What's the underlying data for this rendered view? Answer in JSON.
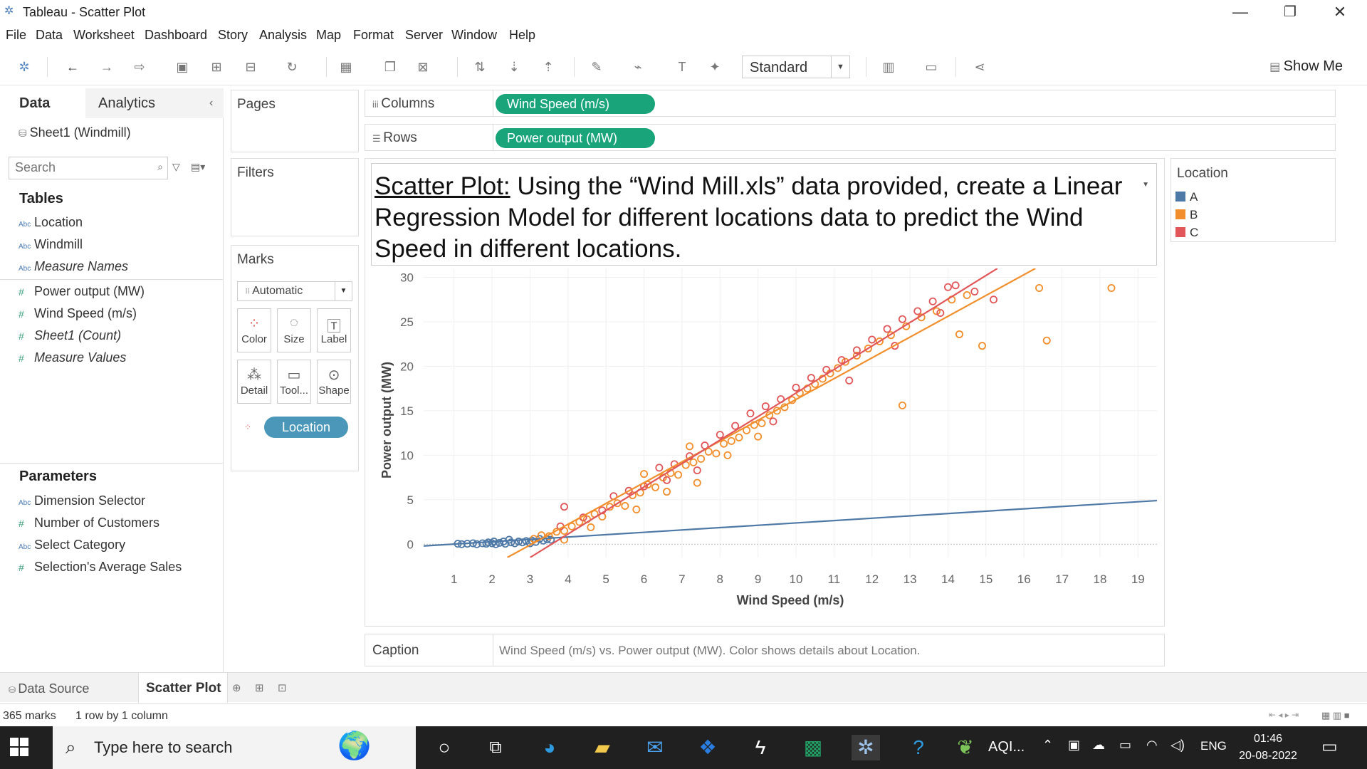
{
  "window": {
    "title": "Tableau - Scatter Plot",
    "minimize": "—",
    "restore": "❐",
    "close": "✕"
  },
  "menu": [
    "File",
    "Data",
    "Worksheet",
    "Dashboard",
    "Story",
    "Analysis",
    "Map",
    "Format",
    "Server",
    "Window",
    "Help"
  ],
  "toolbar": {
    "fit": "Standard",
    "show_me": "Show Me"
  },
  "data_pane": {
    "tab_data": "Data",
    "tab_analytics": "Analytics",
    "datasource": "Sheet1 (Windmill)",
    "search_placeholder": "Search",
    "tables_title": "Tables",
    "dimensions": [
      "Location",
      "Windmill",
      "Measure Names"
    ],
    "measures": [
      "Power output (MW)",
      "Wind Speed (m/s)",
      "Sheet1 (Count)",
      "Measure Values"
    ],
    "parameters_title": "Parameters",
    "parameters": [
      "Dimension Selector",
      "Number of Customers",
      "Select Category",
      "Selection's Average Sales"
    ]
  },
  "cards": {
    "pages": "Pages",
    "filters": "Filters",
    "marks": "Marks",
    "mark_type": "Automatic",
    "buttons": [
      "Color",
      "Size",
      "Label",
      "Detail",
      "Tool...",
      "Shape"
    ],
    "color_pill": "Location"
  },
  "shelves": {
    "columns_label": "Columns",
    "columns_pill": "Wind Speed (m/s)",
    "rows_label": "Rows",
    "rows_pill": "Power output (MW)"
  },
  "viz": {
    "title_lead": "Scatter Plot:",
    "title_rest": " Using the “Wind Mill.xls” data provided, create a Linear Regression Model for different locations data to predict the Wind Speed in different locations."
  },
  "chart_data": {
    "type": "scatter",
    "xlabel": "Wind Speed (m/s)",
    "ylabel": "Power output (MW)",
    "x_ticks": [
      1,
      2,
      3,
      4,
      5,
      6,
      7,
      8,
      9,
      10,
      11,
      12,
      13,
      14,
      15,
      16,
      17,
      18,
      19
    ],
    "y_ticks": [
      0,
      5,
      10,
      15,
      20,
      25,
      30
    ],
    "xlim": [
      0.2,
      19.5
    ],
    "ylim": [
      -1.5,
      31
    ],
    "grid": true,
    "series": [
      {
        "name": "A",
        "color": "#4e79a7",
        "points": [
          [
            1.1,
            0.05
          ],
          [
            1.2,
            0.0
          ],
          [
            1.35,
            0.05
          ],
          [
            1.5,
            0.1
          ],
          [
            1.6,
            0.0
          ],
          [
            1.75,
            0.1
          ],
          [
            1.85,
            0.05
          ],
          [
            1.9,
            0.2
          ],
          [
            2.0,
            0.1
          ],
          [
            2.05,
            0.3
          ],
          [
            2.1,
            0.0
          ],
          [
            2.2,
            0.15
          ],
          [
            2.3,
            0.3
          ],
          [
            2.35,
            0.05
          ],
          [
            2.45,
            0.5
          ],
          [
            2.5,
            0.2
          ],
          [
            2.6,
            0.1
          ],
          [
            2.7,
            0.3
          ],
          [
            2.8,
            0.2
          ],
          [
            2.9,
            0.35
          ],
          [
            3.0,
            0.1
          ],
          [
            3.05,
            0.4
          ],
          [
            3.15,
            0.25
          ],
          [
            3.25,
            0.6
          ],
          [
            3.35,
            0.4
          ],
          [
            3.45,
            0.55
          ],
          [
            3.55,
            0.5
          ]
        ],
        "trend": [
          [
            0.2,
            -0.2
          ],
          [
            19.5,
            4.9
          ]
        ]
      },
      {
        "name": "B",
        "color": "#f28e2b",
        "points": [
          [
            3.1,
            0.6
          ],
          [
            3.3,
            1.0
          ],
          [
            3.5,
            0.9
          ],
          [
            3.7,
            1.4
          ],
          [
            3.9,
            1.5
          ],
          [
            4.1,
            2.0
          ],
          [
            4.3,
            2.5
          ],
          [
            4.5,
            2.8
          ],
          [
            4.7,
            3.4
          ],
          [
            4.9,
            3.1
          ],
          [
            5.1,
            4.2
          ],
          [
            5.3,
            4.6
          ],
          [
            5.5,
            4.3
          ],
          [
            5.7,
            5.5
          ],
          [
            5.9,
            5.8
          ],
          [
            6.1,
            6.7
          ],
          [
            6.3,
            6.4
          ],
          [
            6.5,
            7.5
          ],
          [
            6.7,
            8.0
          ],
          [
            6.9,
            7.8
          ],
          [
            7.1,
            8.9
          ],
          [
            7.3,
            9.2
          ],
          [
            7.5,
            9.6
          ],
          [
            7.7,
            10.4
          ],
          [
            7.9,
            10.2
          ],
          [
            8.1,
            11.3
          ],
          [
            8.3,
            11.6
          ],
          [
            8.5,
            12.0
          ],
          [
            8.7,
            12.8
          ],
          [
            8.9,
            13.4
          ],
          [
            9.1,
            13.6
          ],
          [
            9.3,
            14.5
          ],
          [
            9.5,
            15.0
          ],
          [
            9.7,
            15.4
          ],
          [
            9.9,
            16.2
          ],
          [
            10.1,
            17.0
          ],
          [
            10.3,
            17.5
          ],
          [
            10.5,
            18.0
          ],
          [
            10.7,
            18.6
          ],
          [
            10.9,
            19.2
          ],
          [
            11.1,
            19.8
          ],
          [
            11.3,
            20.5
          ],
          [
            11.6,
            21.2
          ],
          [
            11.9,
            22.0
          ],
          [
            12.2,
            22.8
          ],
          [
            12.5,
            23.5
          ],
          [
            12.9,
            24.5
          ],
          [
            13.3,
            25.5
          ],
          [
            13.7,
            26.2
          ],
          [
            14.1,
            27.5
          ],
          [
            14.5,
            28.0
          ],
          [
            14.3,
            23.6
          ],
          [
            14.9,
            22.3
          ],
          [
            16.4,
            28.8
          ],
          [
            16.6,
            22.9
          ],
          [
            12.8,
            15.6
          ],
          [
            18.3,
            28.8
          ],
          [
            3.9,
            0.5
          ],
          [
            4.6,
            1.9
          ],
          [
            5.8,
            3.9
          ],
          [
            6.6,
            5.9
          ],
          [
            7.4,
            6.9
          ],
          [
            8.2,
            10.0
          ],
          [
            9.0,
            12.1
          ],
          [
            6.0,
            7.9
          ],
          [
            7.2,
            11.0
          ]
        ],
        "trend": [
          [
            2.4,
            -1.5
          ],
          [
            16.3,
            31
          ]
        ]
      },
      {
        "name": "C",
        "color": "#e15759",
        "points": [
          [
            3.8,
            2.0
          ],
          [
            3.9,
            4.2
          ],
          [
            4.4,
            3.0
          ],
          [
            4.9,
            3.8
          ],
          [
            5.2,
            5.4
          ],
          [
            5.6,
            6.0
          ],
          [
            6.0,
            6.5
          ],
          [
            6.4,
            8.6
          ],
          [
            6.8,
            9.0
          ],
          [
            7.2,
            9.9
          ],
          [
            7.6,
            11.1
          ],
          [
            8.0,
            12.3
          ],
          [
            8.4,
            13.3
          ],
          [
            8.8,
            14.7
          ],
          [
            9.2,
            15.5
          ],
          [
            9.6,
            16.3
          ],
          [
            10.0,
            17.6
          ],
          [
            10.4,
            18.7
          ],
          [
            10.8,
            19.6
          ],
          [
            11.2,
            20.7
          ],
          [
            11.6,
            21.8
          ],
          [
            12.0,
            23.0
          ],
          [
            12.4,
            24.2
          ],
          [
            12.8,
            25.3
          ],
          [
            13.2,
            26.2
          ],
          [
            13.6,
            27.3
          ],
          [
            14.0,
            28.9
          ],
          [
            14.2,
            29.1
          ],
          [
            14.7,
            28.4
          ],
          [
            15.2,
            27.5
          ],
          [
            11.4,
            18.4
          ],
          [
            9.4,
            13.8
          ],
          [
            7.4,
            8.3
          ],
          [
            6.6,
            7.2
          ],
          [
            13.8,
            26.0
          ],
          [
            12.6,
            22.3
          ]
        ],
        "trend": [
          [
            3.0,
            -1.5
          ],
          [
            15.3,
            31
          ]
        ]
      }
    ]
  },
  "legend": {
    "title": "Location",
    "items": [
      {
        "label": "A",
        "color": "#4e79a7"
      },
      {
        "label": "B",
        "color": "#f28e2b"
      },
      {
        "label": "C",
        "color": "#e15759"
      }
    ]
  },
  "caption": {
    "label": "Caption",
    "text": "Wind Speed (m/s) vs. Power output (MW).  Color shows details about Location."
  },
  "sheet_tabs": {
    "datasource": "Data Source",
    "active": "Scatter Plot"
  },
  "status": {
    "marks": "365 marks",
    "grid": "1 row by 1 column"
  },
  "taskbar": {
    "search_text": "Type here to search",
    "aqi": "AQI...",
    "lang": "ENG",
    "time": "01:46",
    "date": "20-08-2022"
  }
}
